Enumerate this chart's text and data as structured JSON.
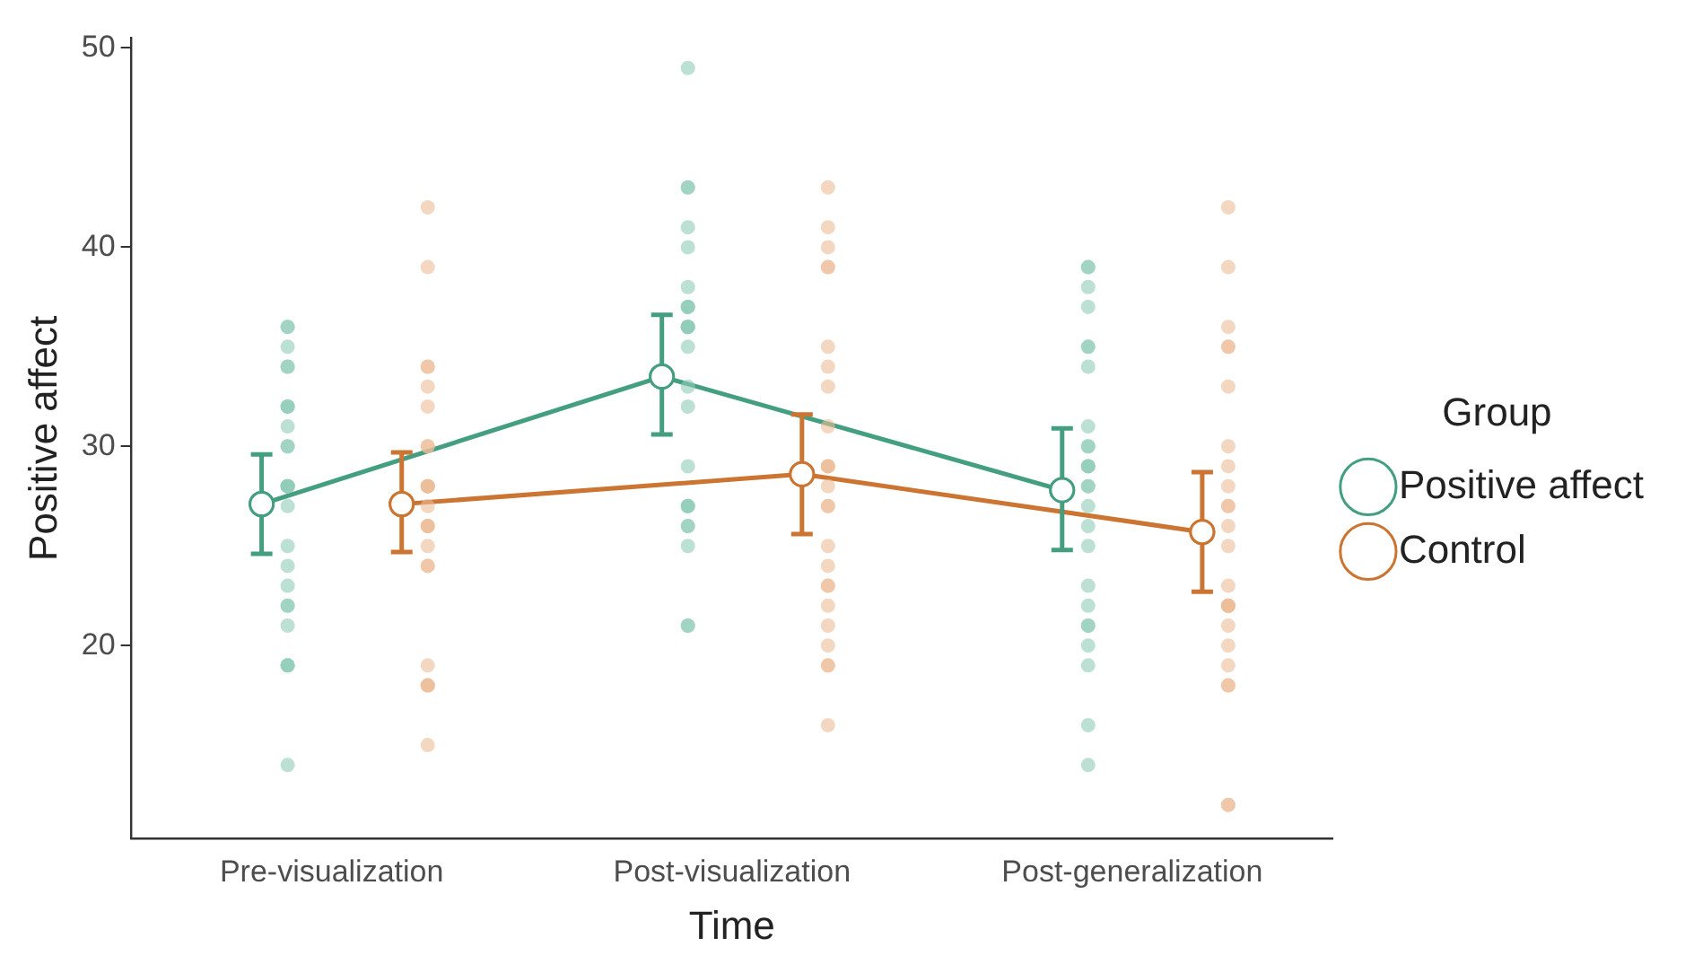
{
  "chart_data": {
    "type": "line",
    "xlabel": "Time",
    "ylabel": "Positive affect",
    "legend_title": "Group",
    "legend": "right",
    "grid": false,
    "marker": "circle",
    "line_style": "solid",
    "categories": [
      "Pre-visualization",
      "Post-visualization",
      "Post-generalization"
    ],
    "ylim": [
      10.3,
      50.5
    ],
    "yticks": [
      20,
      30,
      40,
      50
    ],
    "series": [
      {
        "type": "scatter",
        "color": "#8fcbb7",
        "x": [
          "Pre-visualization",
          "Pre-visualization",
          "Pre-visualization",
          "Pre-visualization",
          "Pre-visualization",
          "Pre-visualization",
          "Pre-visualization",
          "Pre-visualization",
          "Pre-visualization",
          "Pre-visualization",
          "Pre-visualization",
          "Pre-visualization",
          "Pre-visualization",
          "Pre-visualization",
          "Pre-visualization",
          "Pre-visualization",
          "Pre-visualization",
          "Pre-visualization",
          "Pre-visualization",
          "Pre-visualization",
          "Pre-visualization",
          "Pre-visualization",
          "Pre-visualization",
          "Pre-visualization",
          "Pre-visualization",
          "Pre-visualization",
          "Post-visualization",
          "Post-visualization",
          "Post-visualization",
          "Post-visualization",
          "Post-visualization",
          "Post-visualization",
          "Post-visualization",
          "Post-visualization",
          "Post-visualization",
          "Post-visualization",
          "Post-visualization",
          "Post-visualization",
          "Post-visualization",
          "Post-visualization",
          "Post-visualization",
          "Post-visualization",
          "Post-visualization",
          "Post-visualization",
          "Post-visualization",
          "Post-visualization",
          "Post-visualization",
          "Post-visualization",
          "Post-visualization",
          "Post-visualization",
          "Post-visualization",
          "Post-generalization",
          "Post-generalization",
          "Post-generalization",
          "Post-generalization",
          "Post-generalization",
          "Post-generalization",
          "Post-generalization",
          "Post-generalization",
          "Post-generalization",
          "Post-generalization",
          "Post-generalization",
          "Post-generalization",
          "Post-generalization",
          "Post-generalization",
          "Post-generalization",
          "Post-generalization",
          "Post-generalization",
          "Post-generalization",
          "Post-generalization",
          "Post-generalization",
          "Post-generalization",
          "Post-generalization",
          "Post-generalization",
          "Post-generalization",
          "Post-generalization",
          "Post-generalization"
        ],
        "values": [
          36,
          36,
          35,
          34,
          34,
          32,
          32,
          32,
          31,
          30,
          30,
          28,
          28,
          28,
          28,
          27,
          25,
          24,
          23,
          22,
          22,
          21,
          19,
          19,
          19,
          14,
          49,
          43,
          43,
          41,
          40,
          38,
          37,
          37,
          37,
          36,
          36,
          36,
          36,
          35,
          33,
          32,
          29,
          27,
          27,
          27,
          26,
          26,
          25,
          21,
          21,
          39,
          39,
          38,
          37,
          35,
          35,
          34,
          31,
          30,
          30,
          29,
          29,
          29,
          28,
          28,
          27,
          26,
          25,
          23,
          22,
          21,
          21,
          20,
          19,
          16,
          14
        ]
      },
      {
        "type": "scatter",
        "color": "#ecbd97",
        "x": [
          "Pre-visualization",
          "Pre-visualization",
          "Pre-visualization",
          "Pre-visualization",
          "Pre-visualization",
          "Pre-visualization",
          "Pre-visualization",
          "Pre-visualization",
          "Pre-visualization",
          "Pre-visualization",
          "Pre-visualization",
          "Pre-visualization",
          "Pre-visualization",
          "Pre-visualization",
          "Pre-visualization",
          "Pre-visualization",
          "Pre-visualization",
          "Pre-visualization",
          "Pre-visualization",
          "Pre-visualization",
          "Pre-visualization",
          "Pre-visualization",
          "Pre-visualization",
          "Pre-visualization",
          "Post-visualization",
          "Post-visualization",
          "Post-visualization",
          "Post-visualization",
          "Post-visualization",
          "Post-visualization",
          "Post-visualization",
          "Post-visualization",
          "Post-visualization",
          "Post-visualization",
          "Post-visualization",
          "Post-visualization",
          "Post-visualization",
          "Post-visualization",
          "Post-visualization",
          "Post-visualization",
          "Post-visualization",
          "Post-visualization",
          "Post-visualization",
          "Post-visualization",
          "Post-visualization",
          "Post-visualization",
          "Post-visualization",
          "Post-visualization",
          "Post-visualization",
          "Post-generalization",
          "Post-generalization",
          "Post-generalization",
          "Post-generalization",
          "Post-generalization",
          "Post-generalization",
          "Post-generalization",
          "Post-generalization",
          "Post-generalization",
          "Post-generalization",
          "Post-generalization",
          "Post-generalization",
          "Post-generalization",
          "Post-generalization",
          "Post-generalization",
          "Post-generalization",
          "Post-generalization",
          "Post-generalization",
          "Post-generalization",
          "Post-generalization",
          "Post-generalization",
          "Post-generalization",
          "Post-generalization",
          "Post-generalization",
          "Post-generalization"
        ],
        "values": [
          42,
          39,
          34,
          34,
          33,
          32,
          30,
          30,
          28,
          28,
          28,
          28,
          27,
          26,
          26,
          26,
          25,
          24,
          24,
          19,
          18,
          18,
          18,
          15,
          43,
          41,
          40,
          39,
          39,
          35,
          34,
          33,
          31,
          29,
          29,
          29,
          28,
          27,
          27,
          25,
          24,
          23,
          23,
          22,
          21,
          20,
          19,
          19,
          16,
          42,
          39,
          36,
          35,
          35,
          33,
          30,
          29,
          28,
          27,
          27,
          26,
          25,
          23,
          22,
          22,
          22,
          22,
          21,
          20,
          19,
          18,
          18,
          12,
          12
        ]
      },
      {
        "type": "line",
        "name": "Positive affect",
        "color": "#449e80",
        "values": [
          27.1,
          33.5,
          27.8
        ],
        "errors": [
          [
            24.6,
            29.6
          ],
          [
            30.6,
            36.6
          ],
          [
            24.8,
            30.9
          ]
        ]
      },
      {
        "type": "line",
        "name": "Control",
        "color": "#cc7431",
        "values": [
          27.1,
          28.6,
          25.7
        ],
        "errors": [
          [
            24.7,
            29.7
          ],
          [
            25.6,
            31.6
          ],
          [
            22.7,
            28.7
          ]
        ]
      }
    ]
  }
}
